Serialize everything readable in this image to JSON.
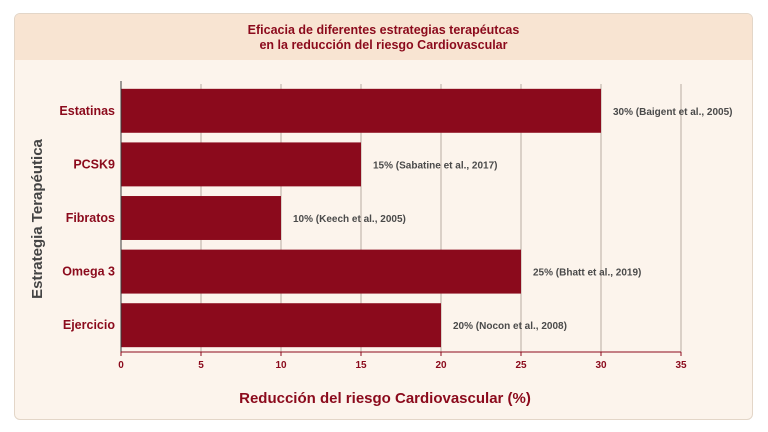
{
  "chart_data": {
    "type": "bar",
    "orientation": "horizontal",
    "title_lines": [
      "Eficacia de diferentes estrategias terapéutcas",
      "en la reducción del riesgo Cardiovascular"
    ],
    "xlabel": "Reducción del riesgo Cardiovascular (%)",
    "ylabel": "Estrategia Terapéutica",
    "categories": [
      "Estatinas",
      "PCSK9",
      "Fibratos",
      "Omega 3",
      "Ejercicio"
    ],
    "values": [
      30,
      15,
      10,
      25,
      20
    ],
    "data_labels": [
      "30% (Baigent et al., 2005)",
      "15% (Sabatine et al., 2017)",
      "10% (Keech et al., 2005)",
      "25% (Bhatt et al., 2019)",
      "20% (Nocon et al., 2008)"
    ],
    "xlim": [
      0,
      35
    ],
    "xticks": [
      "0",
      "5",
      "10",
      "15",
      "20",
      "25",
      "30",
      "35"
    ],
    "grid": true,
    "colors": {
      "bar": "#8b0a1c",
      "text": "#8b0a1c",
      "background": "#fcf4ec",
      "title_band": "#f8e4d2"
    }
  }
}
